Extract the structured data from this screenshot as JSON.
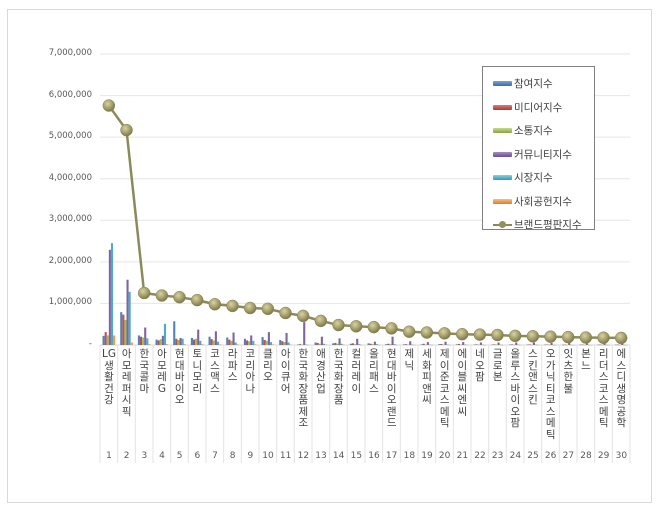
{
  "chart_data": {
    "type": "bar+line",
    "title": "",
    "xlabel": "",
    "ylabel": "",
    "ylim": [
      0,
      7000000
    ],
    "yticks": [
      "-",
      "1,000,000",
      "2,000,000",
      "3,000,000",
      "4,000,000",
      "5,000,000",
      "6,000,000",
      "7,000,000"
    ],
    "grid": true,
    "legend_position": "upper-right (inside)",
    "categories": [
      "LG생활건강",
      "아모레퍼시픽",
      "한국콜마",
      "아모레G",
      "현대바이오",
      "토니모리",
      "코스맥스",
      "라파스",
      "코리아나",
      "클리오",
      "아이큐어",
      "한국화장품제조",
      "애경산업",
      "한국화장품",
      "컬러레이",
      "올리패스",
      "현대바이오랜드",
      "제닉",
      "세화피앤씨",
      "제이준코스메틱",
      "에이블씨엔씨",
      "네오팜",
      "글로본",
      "올루스바이오팜",
      "스킨앤스킨",
      "오가닉티코스메틱",
      "잇츠한불",
      "본느",
      "리더스코스메틱",
      "에스디생명공학"
    ],
    "category_numbers": [
      "1",
      "2",
      "3",
      "4",
      "5",
      "6",
      "7",
      "8",
      "9",
      "10",
      "11",
      "12",
      "13",
      "14",
      "15",
      "16",
      "17",
      "18",
      "19",
      "20",
      "21",
      "22",
      "23",
      "24",
      "25",
      "26",
      "27",
      "28",
      "29",
      "30"
    ],
    "series": [
      {
        "name": "참여지수",
        "type": "bar",
        "color": "#4f81bd",
        "values": [
          220000,
          790000,
          230000,
          130000,
          570000,
          170000,
          200000,
          180000,
          150000,
          190000,
          120000,
          10000,
          60000,
          40000,
          30000,
          40000,
          20000,
          15000,
          15000,
          20000,
          15000,
          10000,
          10000,
          10000,
          10000,
          10000,
          8000,
          8000,
          8000,
          8000
        ]
      },
      {
        "name": "미디어지수",
        "type": "bar",
        "color": "#c0504d",
        "values": [
          310000,
          730000,
          200000,
          110000,
          150000,
          130000,
          140000,
          130000,
          110000,
          120000,
          90000,
          20000,
          50000,
          50000,
          40000,
          30000,
          30000,
          20000,
          30000,
          25000,
          25000,
          15000,
          15000,
          15000,
          15000,
          12000,
          10000,
          10000,
          10000,
          10000
        ]
      },
      {
        "name": "소통지수",
        "type": "bar",
        "color": "#9bbb59",
        "values": [
          230000,
          600000,
          180000,
          140000,
          120000,
          150000,
          110000,
          100000,
          90000,
          100000,
          70000,
          10000,
          30000,
          30000,
          20000,
          20000,
          20000,
          10000,
          10000,
          10000,
          10000,
          8000,
          8000,
          8000,
          8000,
          6000,
          5000,
          5000,
          5000,
          5000
        ]
      },
      {
        "name": "커뮤니티지수",
        "type": "bar",
        "color": "#8064a2",
        "values": [
          2290000,
          1570000,
          420000,
          220000,
          170000,
          370000,
          330000,
          300000,
          230000,
          310000,
          290000,
          550000,
          200000,
          160000,
          150000,
          80000,
          200000,
          90000,
          70000,
          80000,
          70000,
          60000,
          60000,
          60000,
          60000,
          50000,
          50000,
          40000,
          40000,
          40000
        ]
      },
      {
        "name": "시장지수",
        "type": "bar",
        "color": "#4bacc6",
        "values": [
          2450000,
          1280000,
          160000,
          510000,
          150000,
          100000,
          80000,
          60000,
          100000,
          70000,
          60000,
          10000,
          30000,
          30000,
          20000,
          20000,
          20000,
          10000,
          10000,
          10000,
          10000,
          8000,
          8000,
          8000,
          8000,
          6000,
          5000,
          5000,
          5000,
          5000
        ]
      },
      {
        "name": "사회공헌지수",
        "type": "bar",
        "color": "#f79646",
        "values": [
          230000,
          60000,
          20000,
          20000,
          20000,
          20000,
          15000,
          15000,
          15000,
          15000,
          10000,
          5000,
          10000,
          10000,
          5000,
          5000,
          5000,
          5000,
          5000,
          5000,
          5000,
          3000,
          3000,
          3000,
          3000,
          3000,
          3000,
          3000,
          3000,
          3000
        ]
      },
      {
        "name": "브랜드평판지수",
        "type": "line",
        "color": "#948f5e",
        "values": [
          5760000,
          5170000,
          1250000,
          1190000,
          1150000,
          1080000,
          980000,
          940000,
          890000,
          870000,
          770000,
          700000,
          580000,
          480000,
          450000,
          430000,
          400000,
          320000,
          300000,
          280000,
          260000,
          250000,
          240000,
          220000,
          210000,
          200000,
          190000,
          180000,
          175000,
          170000
        ]
      }
    ]
  },
  "legend": {
    "items": [
      {
        "label": "참여지수",
        "color": "#4f81bd"
      },
      {
        "label": "미디어지수",
        "color": "#c0504d"
      },
      {
        "label": "소통지수",
        "color": "#9bbb59"
      },
      {
        "label": "커뮤니티지수",
        "color": "#8064a2"
      },
      {
        "label": "시장지수",
        "color": "#4bacc6"
      },
      {
        "label": "사회공헌지수",
        "color": "#f79646"
      },
      {
        "label": "브랜드평판지수",
        "color": "#948f5e"
      }
    ]
  }
}
